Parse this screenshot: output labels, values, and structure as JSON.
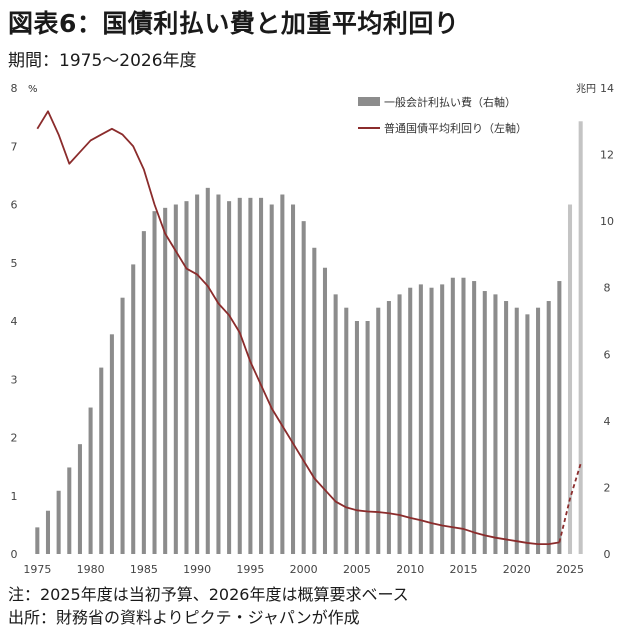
{
  "header": {
    "title": "図表6：国債利払い費と加重平均利回り",
    "period": "期間：1975～2026年度"
  },
  "footer": {
    "note": "注：2025年度は当初予算、2026年度は概算要求ベース",
    "source": "出所：財務省の資料よりピクテ・ジャパンが作成"
  },
  "chart_data": {
    "type": "bar+line",
    "left_axis": {
      "unit_label": "%",
      "min": 0,
      "max": 8,
      "ticks": [
        "0",
        "1",
        "2",
        "3",
        "4",
        "5",
        "6",
        "7",
        "8"
      ]
    },
    "right_axis": {
      "unit_label": "兆円",
      "min": 0,
      "max": 14,
      "ticks": [
        "0",
        "2",
        "4",
        "6",
        "8",
        "10",
        "12",
        "14"
      ]
    },
    "x_ticks": [
      "1975",
      "1980",
      "1985",
      "1990",
      "1995",
      "2000",
      "2005",
      "2010",
      "2015",
      "2020",
      "2025"
    ],
    "legend": {
      "position": "top-right"
    },
    "colors": {
      "bar": "#8c8c8c",
      "bar_projected": "#c4c4c4",
      "line": "#8b2c2c"
    },
    "series": [
      {
        "name": "一般会計利払い費（右軸）",
        "axis": "right",
        "x": [
          1975,
          1976,
          1977,
          1978,
          1979,
          1980,
          1981,
          1982,
          1983,
          1984,
          1985,
          1986,
          1987,
          1988,
          1989,
          1990,
          1991,
          1992,
          1993,
          1994,
          1995,
          1996,
          1997,
          1998,
          1999,
          2000,
          2001,
          2002,
          2003,
          2004,
          2005,
          2006,
          2007,
          2008,
          2009,
          2010,
          2011,
          2012,
          2013,
          2014,
          2015,
          2016,
          2017,
          2018,
          2019,
          2020,
          2021,
          2022,
          2023,
          2024,
          2025,
          2026
        ],
        "values": [
          0.8,
          1.3,
          1.9,
          2.6,
          3.3,
          4.4,
          5.6,
          6.6,
          7.7,
          8.7,
          9.7,
          10.3,
          10.4,
          10.5,
          10.6,
          10.8,
          11.0,
          10.8,
          10.6,
          10.7,
          10.7,
          10.7,
          10.5,
          10.8,
          10.5,
          10.0,
          9.2,
          8.6,
          7.8,
          7.4,
          7.0,
          7.0,
          7.4,
          7.6,
          7.8,
          8.0,
          8.1,
          8.0,
          8.1,
          8.3,
          8.3,
          8.2,
          7.9,
          7.8,
          7.6,
          7.4,
          7.2,
          7.4,
          7.6,
          8.2,
          10.5,
          13.0
        ]
      },
      {
        "name": "普通国債平均利回り（左軸）",
        "axis": "left",
        "x": [
          1975,
          1976,
          1977,
          1978,
          1979,
          1980,
          1981,
          1982,
          1983,
          1984,
          1985,
          1986,
          1987,
          1988,
          1989,
          1990,
          1991,
          1992,
          1993,
          1994,
          1995,
          1996,
          1997,
          1998,
          1999,
          2000,
          2001,
          2002,
          2003,
          2004,
          2005,
          2006,
          2007,
          2008,
          2009,
          2010,
          2011,
          2012,
          2013,
          2014,
          2015,
          2016,
          2017,
          2018,
          2019,
          2020,
          2021,
          2022,
          2023,
          2024,
          2025,
          2026
        ],
        "values": [
          7.3,
          7.6,
          7.2,
          6.7,
          6.9,
          7.1,
          7.2,
          7.3,
          7.2,
          7.0,
          6.6,
          6.0,
          5.5,
          5.2,
          4.9,
          4.8,
          4.6,
          4.3,
          4.1,
          3.8,
          3.3,
          2.9,
          2.5,
          2.2,
          1.9,
          1.6,
          1.3,
          1.1,
          0.9,
          0.8,
          0.75,
          0.73,
          0.72,
          0.7,
          0.67,
          0.62,
          0.58,
          0.53,
          0.49,
          0.46,
          0.43,
          0.37,
          0.32,
          0.28,
          0.25,
          0.22,
          0.19,
          0.17,
          0.17,
          0.2,
          0.95,
          1.55
        ],
        "projected_from": 2024
      }
    ]
  }
}
